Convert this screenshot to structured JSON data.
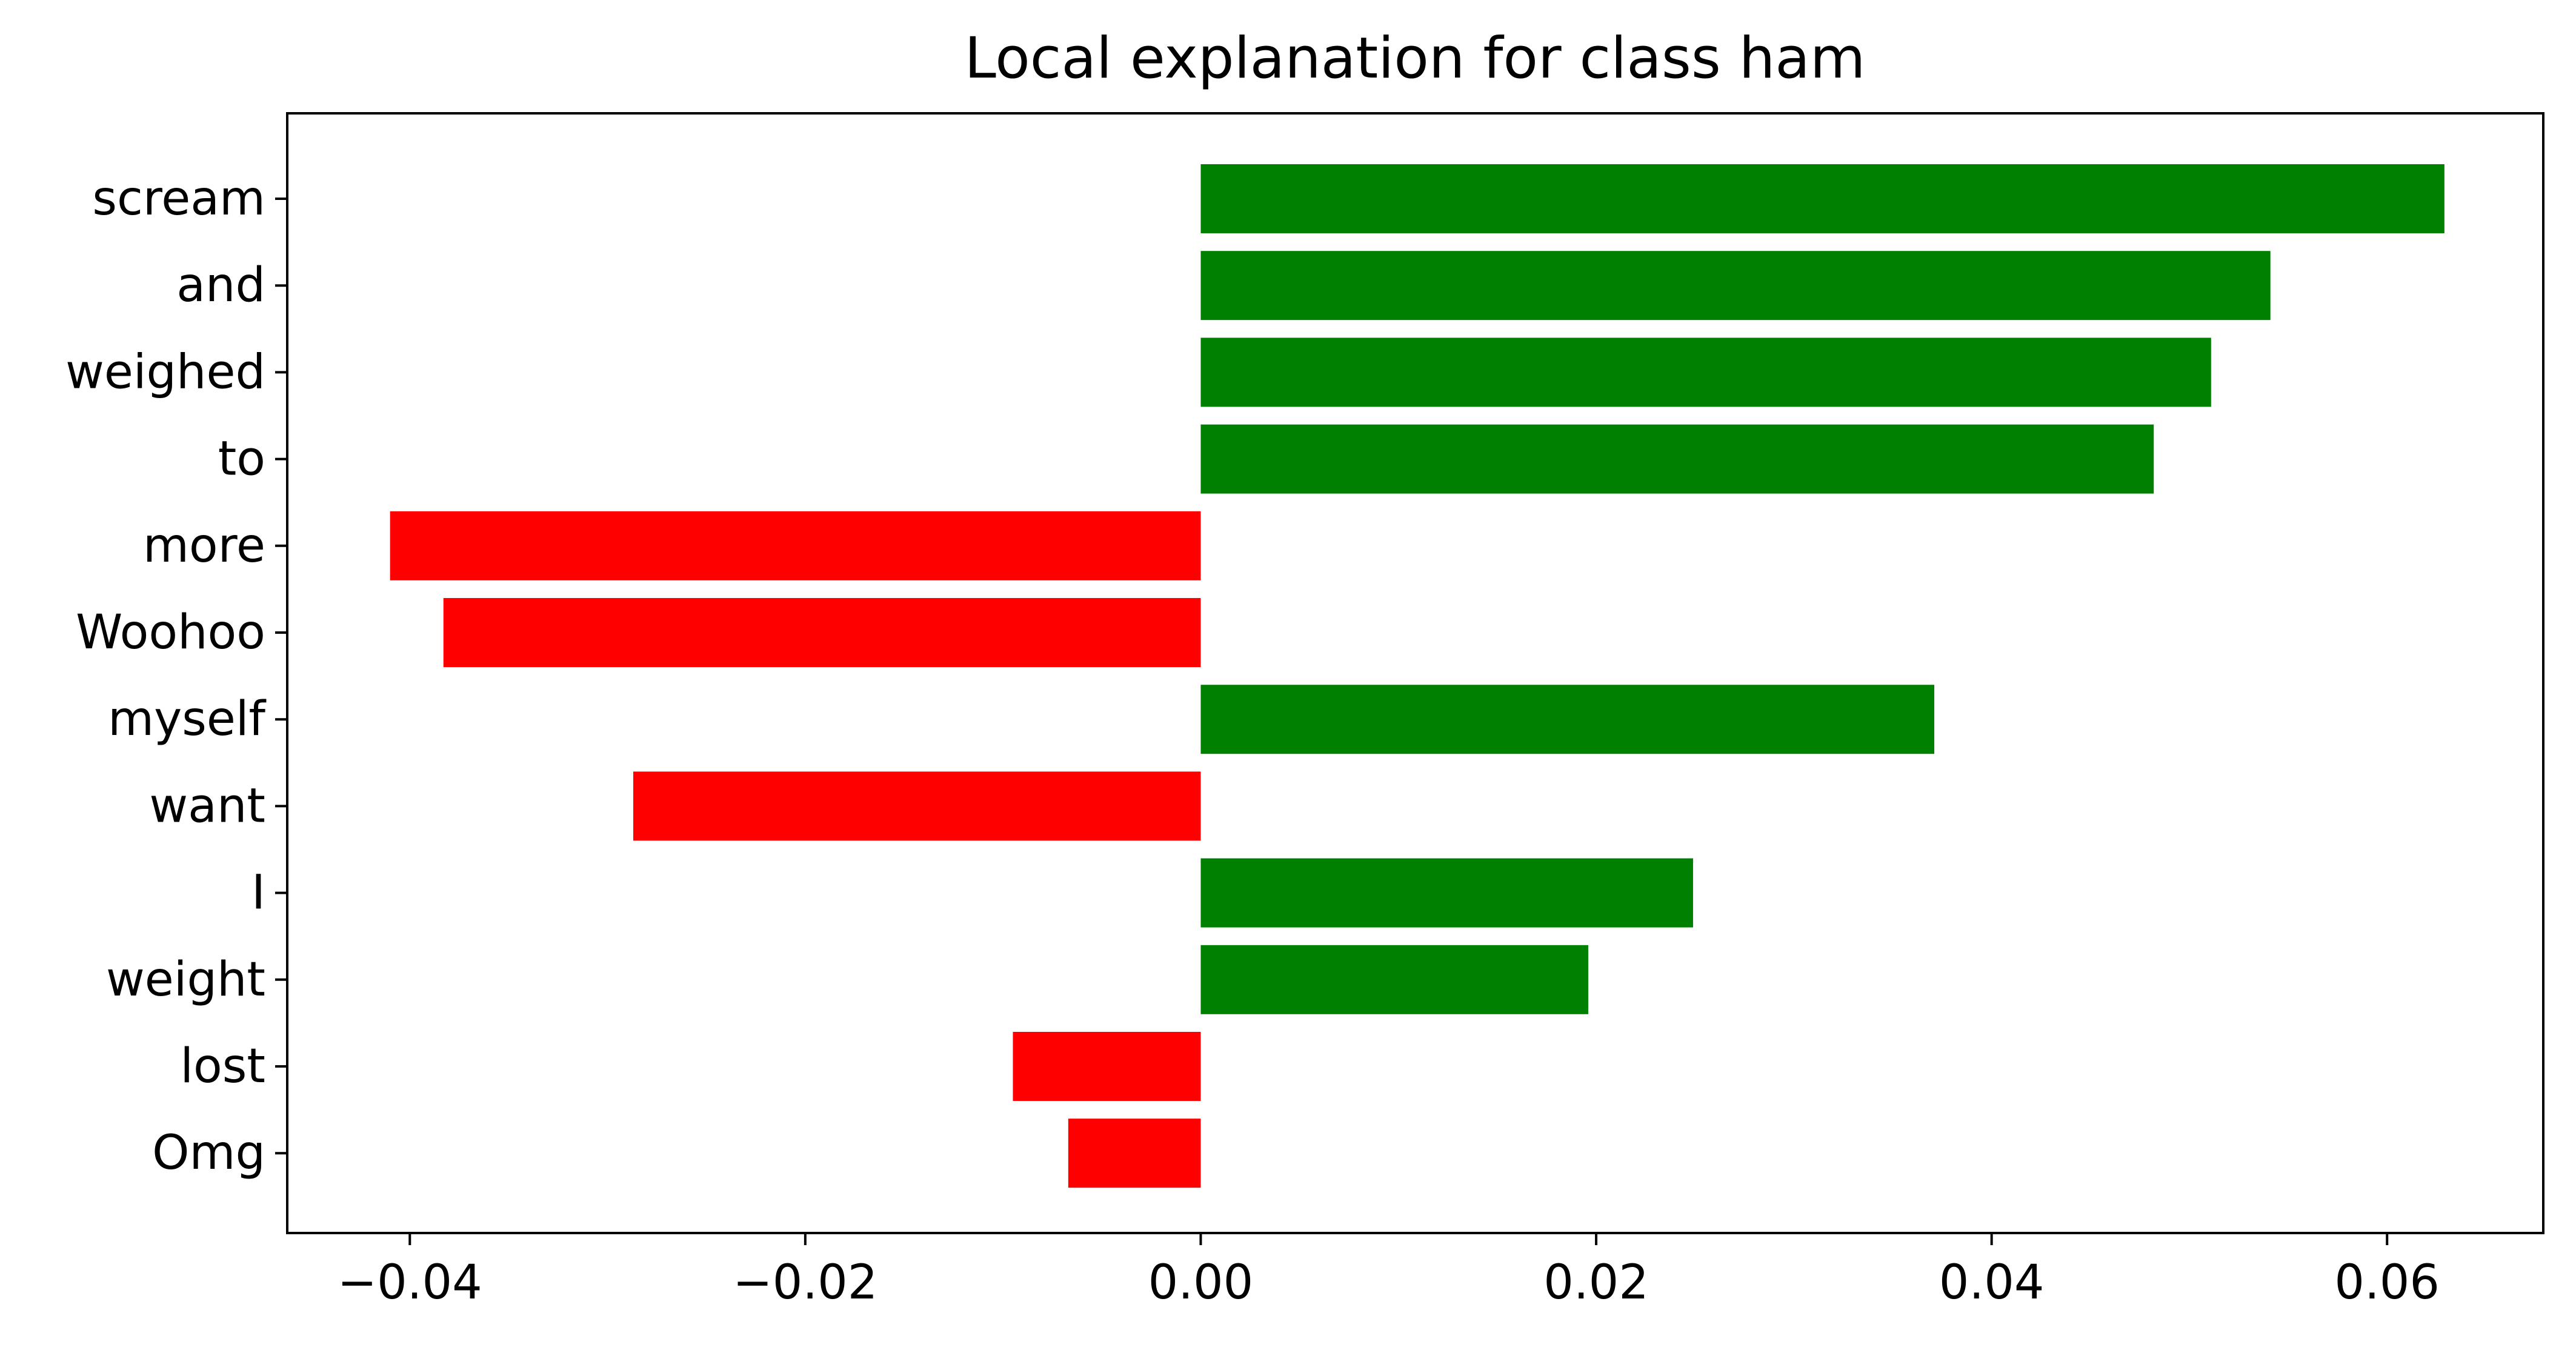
{
  "chart_data": {
    "type": "bar",
    "orientation": "horizontal",
    "title": "Local explanation for class ham",
    "xlabel": "",
    "ylabel": "",
    "categories": [
      "scream",
      "and",
      "weighed",
      "to",
      "more",
      "Woohoo",
      "myself",
      "want",
      "I",
      "weight",
      "lost",
      "Omg"
    ],
    "values": [
      0.0629,
      0.0541,
      0.0511,
      0.0482,
      -0.041,
      -0.0383,
      0.0371,
      -0.0287,
      0.0249,
      0.0196,
      -0.0095,
      -0.0067
    ],
    "xlim": [
      -0.0462,
      0.0679
    ],
    "xticks": [
      -0.04,
      -0.02,
      0.0,
      0.02,
      0.04,
      0.06
    ],
    "xtick_labels": [
      "−0.04",
      "−0.02",
      "0.00",
      "0.02",
      "0.04",
      "0.06"
    ],
    "grid": false,
    "colors": {
      "positive": "#008000",
      "negative": "#ff0000",
      "axis": "#000000"
    }
  }
}
